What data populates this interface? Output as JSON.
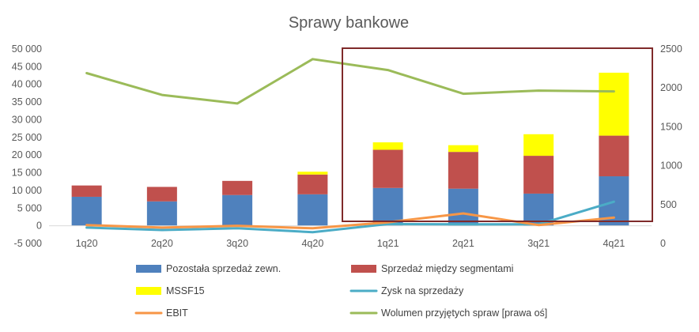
{
  "chart_data": {
    "type": "bar",
    "title": "Sprawy bankowe",
    "categories": [
      "1q20",
      "2q20",
      "3q20",
      "4q20",
      "1q21",
      "2q21",
      "3q21",
      "4q21"
    ],
    "ylim": [
      -5000,
      50000
    ],
    "y_ticks": [
      "-5 000",
      "0",
      "5 000",
      "10 000",
      "15 000",
      "20 000",
      "25 000",
      "30 000",
      "35 000",
      "40 000",
      "45 000",
      "50 000"
    ],
    "y2lim": [
      0,
      2500
    ],
    "y2_ticks": [
      "0",
      "500",
      "1000",
      "1500",
      "2000",
      "2500"
    ],
    "grid": false,
    "legend_position": "bottom",
    "stacked_series": [
      {
        "name": "Pozostała sprzedaż zewn.",
        "color": "#4F81BD",
        "values": [
          8200,
          6900,
          8700,
          8900,
          10700,
          10500,
          9100,
          14000
        ]
      },
      {
        "name": "Sprzedaż między segmentami",
        "color": "#C0504D",
        "values": [
          3200,
          4100,
          4000,
          5600,
          10800,
          10400,
          10700,
          11500
        ]
      },
      {
        "name": "MSSF15",
        "color": "#FFFF00",
        "values": [
          0,
          0,
          0,
          800,
          2100,
          1900,
          6100,
          17800
        ]
      }
    ],
    "line_series": [
      {
        "name": "Zysk na sprzedaży",
        "color": "#4BACC6",
        "axis": "left",
        "values": [
          -500,
          -1200,
          -700,
          -1800,
          500,
          400,
          400,
          6800
        ]
      },
      {
        "name": "EBIT",
        "color": "#F79646",
        "axis": "left",
        "values": [
          200,
          -500,
          0,
          -700,
          1000,
          3500,
          200,
          2300
        ]
      },
      {
        "name": "Wolumen przyjętych spraw [prawa oś]",
        "color": "#9BBB59",
        "axis": "right",
        "values": [
          2190,
          1910,
          1800,
          2370,
          2230,
          1925,
          1965,
          1955
        ]
      }
    ],
    "annotation": {
      "type": "highlight-box",
      "color": "#7F2A2A",
      "covers": [
        "1q21",
        "2q21",
        "3q21",
        "4q21"
      ]
    }
  }
}
